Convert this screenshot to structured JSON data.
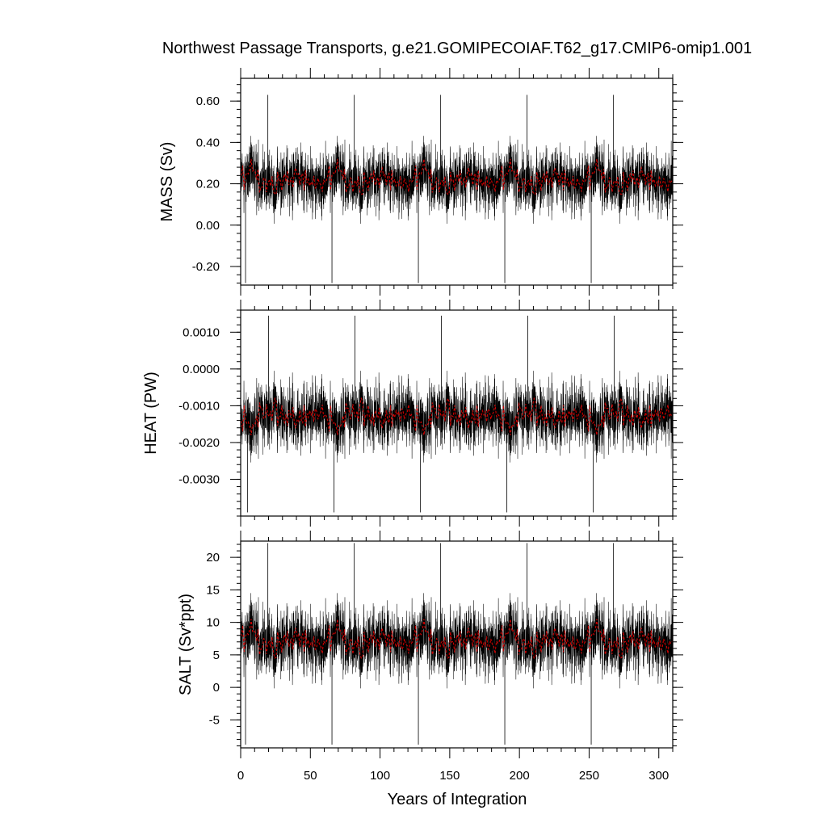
{
  "chart_data": {
    "type": "line",
    "title": "Northwest Passage Transports, g.e21.GOMIPECOIAF.T62_g17.CMIP6-omip1.001",
    "xlabel": "Years of Integration",
    "xlim": [
      0,
      310
    ],
    "x_ticks": [
      0,
      50,
      100,
      150,
      200,
      250,
      300
    ],
    "x_tick_labels": [
      "0",
      "50",
      "100",
      "150",
      "200",
      "250",
      "300"
    ],
    "grid": false,
    "colors": {
      "monthly": "#000000",
      "annual": "#cc0000"
    },
    "cycle_years": 62,
    "panels": [
      {
        "ylabel": "MASS (Sv)",
        "ylim": [
          -0.29,
          0.71
        ],
        "y_ticks": [
          0.6,
          0.4,
          0.2,
          0.0,
          -0.2
        ],
        "y_tick_labels": [
          "0.60",
          "0.40",
          "0.20",
          "0.00",
          "-0.20"
        ],
        "mean": 0.22,
        "spread": 0.075,
        "cycle_amplitude": 0.03,
        "extreme_min": -0.28,
        "extreme_max": 0.63,
        "annual_range": [
          0.15,
          0.32
        ]
      },
      {
        "ylabel": "HEAT (PW)",
        "ylim": [
          -0.004,
          0.0016
        ],
        "y_ticks": [
          0.001,
          0.0,
          -0.001,
          -0.002,
          -0.003
        ],
        "y_tick_labels": [
          "0.0010",
          "0.0000",
          "-0.0010",
          "-0.0020",
          "-0.0030"
        ],
        "mean": -0.0013,
        "spread": 0.00045,
        "cycle_amplitude": 0.00015,
        "extreme_min": -0.0039,
        "extreme_max": 0.00145,
        "annual_range": [
          -0.0018,
          -0.0008
        ]
      },
      {
        "ylabel": "SALT (Sv*ppt)",
        "ylim": [
          -9.3,
          22.5
        ],
        "y_ticks": [
          20,
          15,
          10,
          5,
          0,
          -5
        ],
        "y_tick_labels": [
          "20",
          "15",
          "10",
          "5",
          "0",
          "-5"
        ],
        "mean": 7.2,
        "spread": 2.6,
        "cycle_amplitude": 1.0,
        "extreme_min": -8.8,
        "extreme_max": 22.2,
        "annual_range": [
          4.5,
          10.5
        ]
      }
    ]
  }
}
